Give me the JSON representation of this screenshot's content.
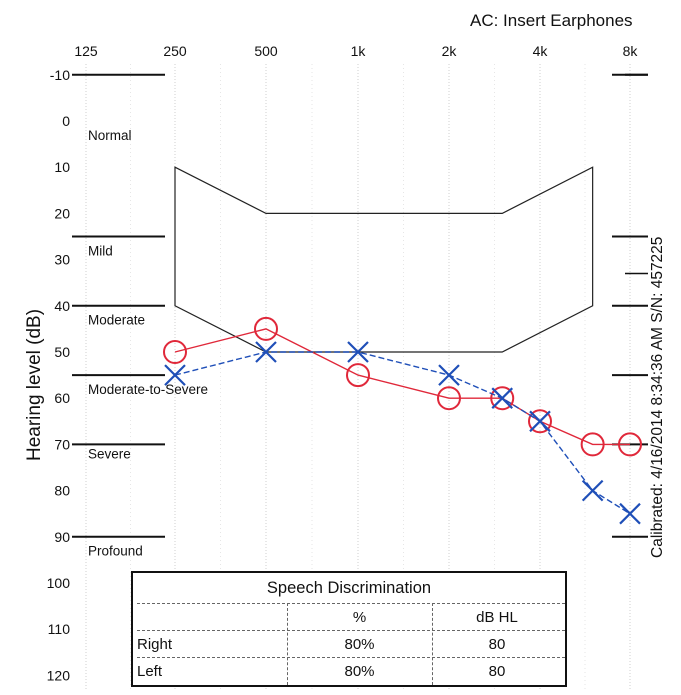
{
  "header": {
    "title": "AC: Insert Earphones"
  },
  "sidebar_text": "Calibrated: 4/16/2014 8:34:36 AM  S/N: 457225",
  "chart_data": {
    "type": "line",
    "title": "AC: Insert Earphones",
    "xlabel": "",
    "ylabel": "Hearing level (dB)",
    "x_tick_labels": [
      "125",
      "250",
      "500",
      "1k",
      "2k",
      "4k",
      "8k"
    ],
    "y_tick_labels": [
      "-10",
      "0",
      "10",
      "20",
      "30",
      "40",
      "50",
      "60",
      "70",
      "80",
      "90",
      "100",
      "110",
      "120"
    ],
    "ylim": [
      -10,
      120
    ],
    "categories": [
      "250",
      "500",
      "1k",
      "2k",
      "3k",
      "4k",
      "6k",
      "8k"
    ],
    "series": [
      {
        "name": "Right",
        "marker": "circle",
        "color": "#e0283a",
        "values": [
          50,
          45,
          55,
          60,
          60,
          65,
          70,
          70
        ]
      },
      {
        "name": "Left",
        "marker": "x",
        "color": "#1f4fb8",
        "values": [
          55,
          50,
          50,
          55,
          60,
          65,
          80,
          85
        ]
      }
    ],
    "degree_labels": [
      {
        "text": "Normal",
        "y": 3
      },
      {
        "text": "Mild",
        "y": 28
      },
      {
        "text": "Moderate",
        "y": 43
      },
      {
        "text": "Moderate-to-Severe",
        "y": 58
      },
      {
        "text": "Severe",
        "y": 72
      },
      {
        "text": "Profound",
        "y": 93
      }
    ],
    "degree_boundaries": [
      -10,
      25,
      40,
      55,
      70,
      90
    ],
    "speech_banana": {
      "top_edge": [
        [
          250,
          10
        ],
        [
          500,
          20
        ],
        [
          3000,
          20
        ],
        [
          6000,
          10
        ]
      ],
      "bottom_edge": [
        [
          250,
          40
        ],
        [
          500,
          50
        ],
        [
          3000,
          50
        ],
        [
          6000,
          40
        ]
      ]
    }
  },
  "speech_discrimination": {
    "title": "Speech Discrimination",
    "headers": [
      "",
      "%",
      "dB HL"
    ],
    "rows": [
      {
        "label": "Right",
        "percent": "80%",
        "db": "80"
      },
      {
        "label": "Left",
        "percent": "80%",
        "db": "80"
      }
    ]
  }
}
